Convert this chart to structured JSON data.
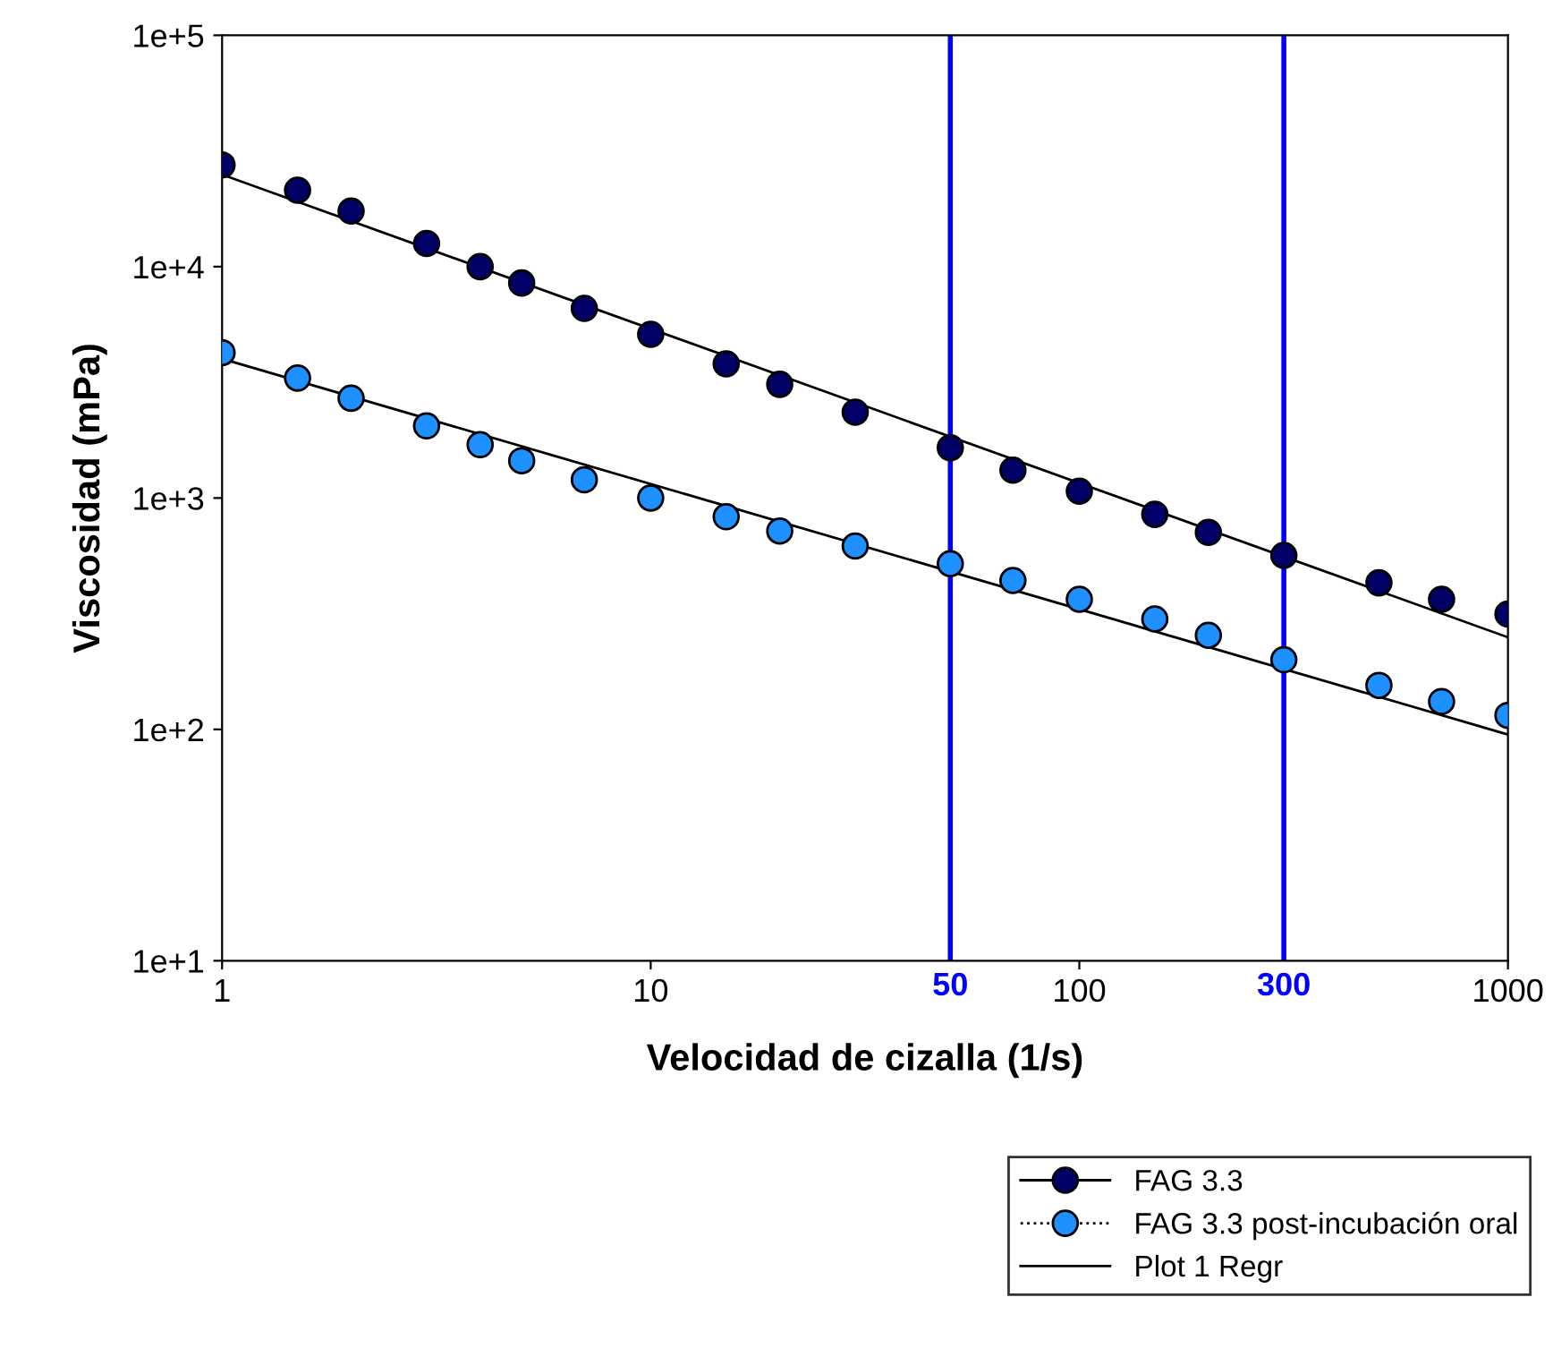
{
  "chart_data": {
    "type": "scatter",
    "xlabel": "Velocidad de cizalla (1/s)",
    "ylabel": "Viscosidad (mPa)",
    "log": "xy",
    "xlim": [
      1,
      1000
    ],
    "ylim": [
      10,
      100000
    ],
    "xticks": [
      1,
      10,
      100,
      1000
    ],
    "yticks": [
      {
        "value": 10,
        "label": "1e+1"
      },
      {
        "value": 100,
        "label": "1e+2"
      },
      {
        "value": 1000,
        "label": "1e+3"
      },
      {
        "value": 10000,
        "label": "1e+4"
      },
      {
        "value": 100000,
        "label": "1e+5"
      }
    ],
    "grid": false,
    "legend": "bottom right",
    "marker": "circle",
    "series": [
      {
        "name": "FAG 3.3",
        "color": "#000066",
        "line_style": "solid",
        "x": [
          1,
          1.5,
          2,
          3,
          4,
          5,
          7,
          10,
          15,
          20,
          30,
          50,
          70,
          100,
          150,
          200,
          300,
          500,
          700,
          1000
        ],
        "values": [
          27500,
          21400,
          17400,
          12600,
          10000,
          8500,
          6600,
          5100,
          3800,
          3100,
          2350,
          1650,
          1320,
          1070,
          850,
          710,
          565,
          430,
          365,
          315
        ]
      },
      {
        "name": "FAG 3.3 post-incubación oral",
        "color": "#1e90ff",
        "line_style": "dotted",
        "x": [
          1,
          1.5,
          2,
          3,
          4,
          5,
          7,
          10,
          15,
          20,
          30,
          50,
          70,
          100,
          150,
          200,
          300,
          500,
          700,
          1000
        ],
        "values": [
          4250,
          3300,
          2700,
          2050,
          1700,
          1450,
          1200,
          1000,
          830,
          720,
          620,
          520,
          440,
          365,
          300,
          255,
          200,
          155,
          132,
          115
        ]
      },
      {
        "name": "Plot 1 Regr",
        "type": "line",
        "marker": "none",
        "color": "#000000",
        "line_style": "solid",
        "x": [
          1,
          1000
        ],
        "values": [
          25000,
          250
        ]
      },
      {
        "type": "line",
        "marker": "none",
        "color": "#000000",
        "line_style": "solid",
        "x": [
          1,
          1000
        ],
        "values": [
          4000,
          95
        ]
      }
    ],
    "ref_lines": [
      {
        "axis": "x",
        "value": 50,
        "label": "50",
        "color": "#0000ff"
      },
      {
        "axis": "x",
        "value": 300,
        "label": "300",
        "color": "#0000ff"
      }
    ]
  }
}
